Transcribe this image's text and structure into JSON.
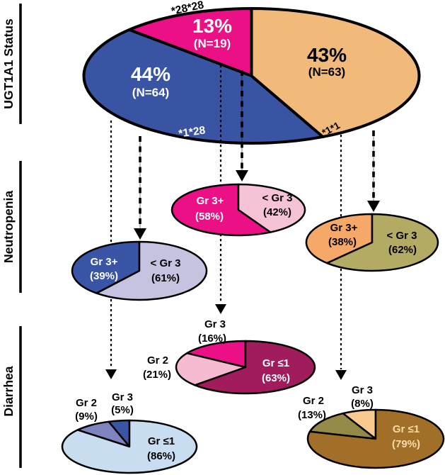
{
  "figure": {
    "sections": [
      {
        "label": "UGT1A1 Status"
      },
      {
        "label": "Neutropenia"
      },
      {
        "label": "Diarrhea"
      }
    ]
  },
  "chart_data": [
    {
      "id": "ugt1a1-status",
      "type": "pie",
      "section": "UGT1A1 Status",
      "legend_position": "inside",
      "slices": [
        {
          "label": "*28*28",
          "pct": 13,
          "n": 19,
          "pct_text": "13%",
          "n_text": "(N=19)",
          "color": "#EC1087",
          "text_color": "#FFFFFF"
        },
        {
          "label": "*1*28",
          "pct": 44,
          "n": 64,
          "pct_text": "44%",
          "n_text": "(N=64)",
          "color": "#3A54A4",
          "text_color": "#FFFFFF"
        },
        {
          "label": "*1*1",
          "pct": 43,
          "n": 63,
          "pct_text": "43%",
          "n_text": "(N=63)",
          "color": "#F1BA7A",
          "text_color": "#000000"
        }
      ]
    },
    {
      "id": "neutropenia-1-28",
      "type": "pie",
      "section": "Neutropenia",
      "parent": "*1*28",
      "slices": [
        {
          "label": "Gr 3+",
          "pct": 39,
          "pct_text": "(39%)",
          "color": "#3A55A6",
          "text_color": "#FFFFFF"
        },
        {
          "label": "< Gr 3",
          "pct": 61,
          "pct_text": "(61%)",
          "color": "#C6C3E0",
          "text_color": "#000000"
        }
      ]
    },
    {
      "id": "neutropenia-28-28",
      "type": "pie",
      "section": "Neutropenia",
      "parent": "*28*28",
      "slices": [
        {
          "label": "Gr 3+",
          "pct": 58,
          "pct_text": "(58%)",
          "color": "#EC1087",
          "text_color": "#FFFFFF"
        },
        {
          "label": "< Gr 3",
          "pct": 42,
          "pct_text": "(42%)",
          "color": "#F6C2D8",
          "text_color": "#000000"
        }
      ]
    },
    {
      "id": "neutropenia-1-1",
      "type": "pie",
      "section": "Neutropenia",
      "parent": "*1*1",
      "slices": [
        {
          "label": "Gr 3+",
          "pct": 38,
          "pct_text": "(38%)",
          "color": "#F5A868",
          "text_color": "#000000"
        },
        {
          "label": "< Gr 3",
          "pct": 62,
          "pct_text": "(62%)",
          "color": "#B3AA64",
          "text_color": "#000000"
        }
      ]
    },
    {
      "id": "diarrhea-28-28",
      "type": "pie",
      "section": "Diarrhea",
      "parent": "*28*28",
      "slices": [
        {
          "label": "Gr 3",
          "pct": 16,
          "pct_text": "(16%)",
          "color": "#EC1087",
          "text_color": "#000000",
          "label_position": "outside"
        },
        {
          "label": "Gr 2",
          "pct": 21,
          "pct_text": "(21%)",
          "color": "#F6BBD3",
          "text_color": "#000000",
          "label_position": "outside"
        },
        {
          "label": "Gr ≤1",
          "pct": 63,
          "pct_text": "(63%)",
          "color": "#A11C5C",
          "text_color": "#FFFFFF",
          "label_position": "inside"
        }
      ]
    },
    {
      "id": "diarrhea-1-28",
      "type": "pie",
      "section": "Diarrhea",
      "parent": "*1*28",
      "slices": [
        {
          "label": "Gr 3",
          "pct": 5,
          "pct_text": "(5%)",
          "color": "#3A55A6",
          "text_color": "#000000",
          "label_position": "outside"
        },
        {
          "label": "Gr 2",
          "pct": 9,
          "pct_text": "(9%)",
          "color": "#8084BE",
          "text_color": "#000000",
          "label_position": "outside"
        },
        {
          "label": "Gr ≤1",
          "pct": 86,
          "pct_text": "(86%)",
          "color": "#C9DDF1",
          "text_color": "#000000",
          "label_position": "inside"
        }
      ]
    },
    {
      "id": "diarrhea-1-1",
      "type": "pie",
      "section": "Diarrhea",
      "parent": "*1*1",
      "slices": [
        {
          "label": "Gr 3",
          "pct": 8,
          "pct_text": "(8%)",
          "color": "#F8C991",
          "text_color": "#000000",
          "label_position": "outside"
        },
        {
          "label": "Gr 2",
          "pct": 13,
          "pct_text": "(13%)",
          "color": "#948A48",
          "text_color": "#000000",
          "label_position": "outside"
        },
        {
          "label": "Gr ≤1",
          "pct": 79,
          "pct_text": "(79%)",
          "color": "#A16F28",
          "text_color": "#FBDCA8",
          "label_position": "inside"
        }
      ]
    }
  ]
}
